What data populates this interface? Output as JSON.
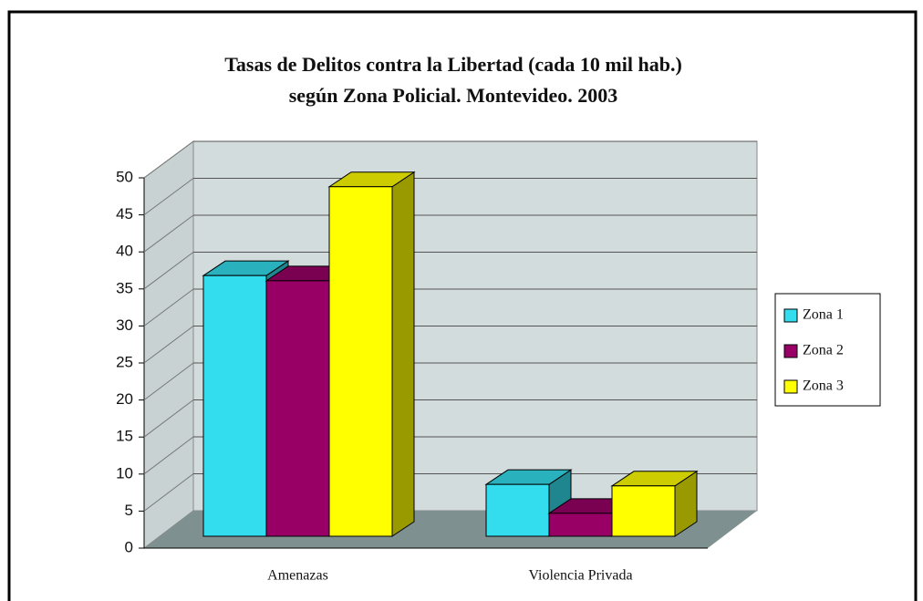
{
  "chart_data": {
    "type": "bar3d",
    "title": "Tasas de Delitos contra la Libertad (cada 10 mil hab.)",
    "subtitle": "según Zona Policial. Montevideo. 2003",
    "categories": [
      "Amenazas",
      "Violencia Privada"
    ],
    "series": [
      {
        "name": "Zona 1",
        "color": "#33ddee",
        "values": [
          35.2,
          7.0
        ]
      },
      {
        "name": "Zona 2",
        "color": "#990066",
        "values": [
          34.5,
          3.1
        ]
      },
      {
        "name": "Zona 3",
        "color": "#ffff00",
        "values": [
          47.2,
          6.8
        ]
      }
    ],
    "ylim": [
      0,
      50
    ],
    "yticks": [
      0,
      5,
      10,
      15,
      20,
      25,
      30,
      35,
      40,
      45,
      50
    ],
    "grid": true,
    "legend": "right"
  }
}
